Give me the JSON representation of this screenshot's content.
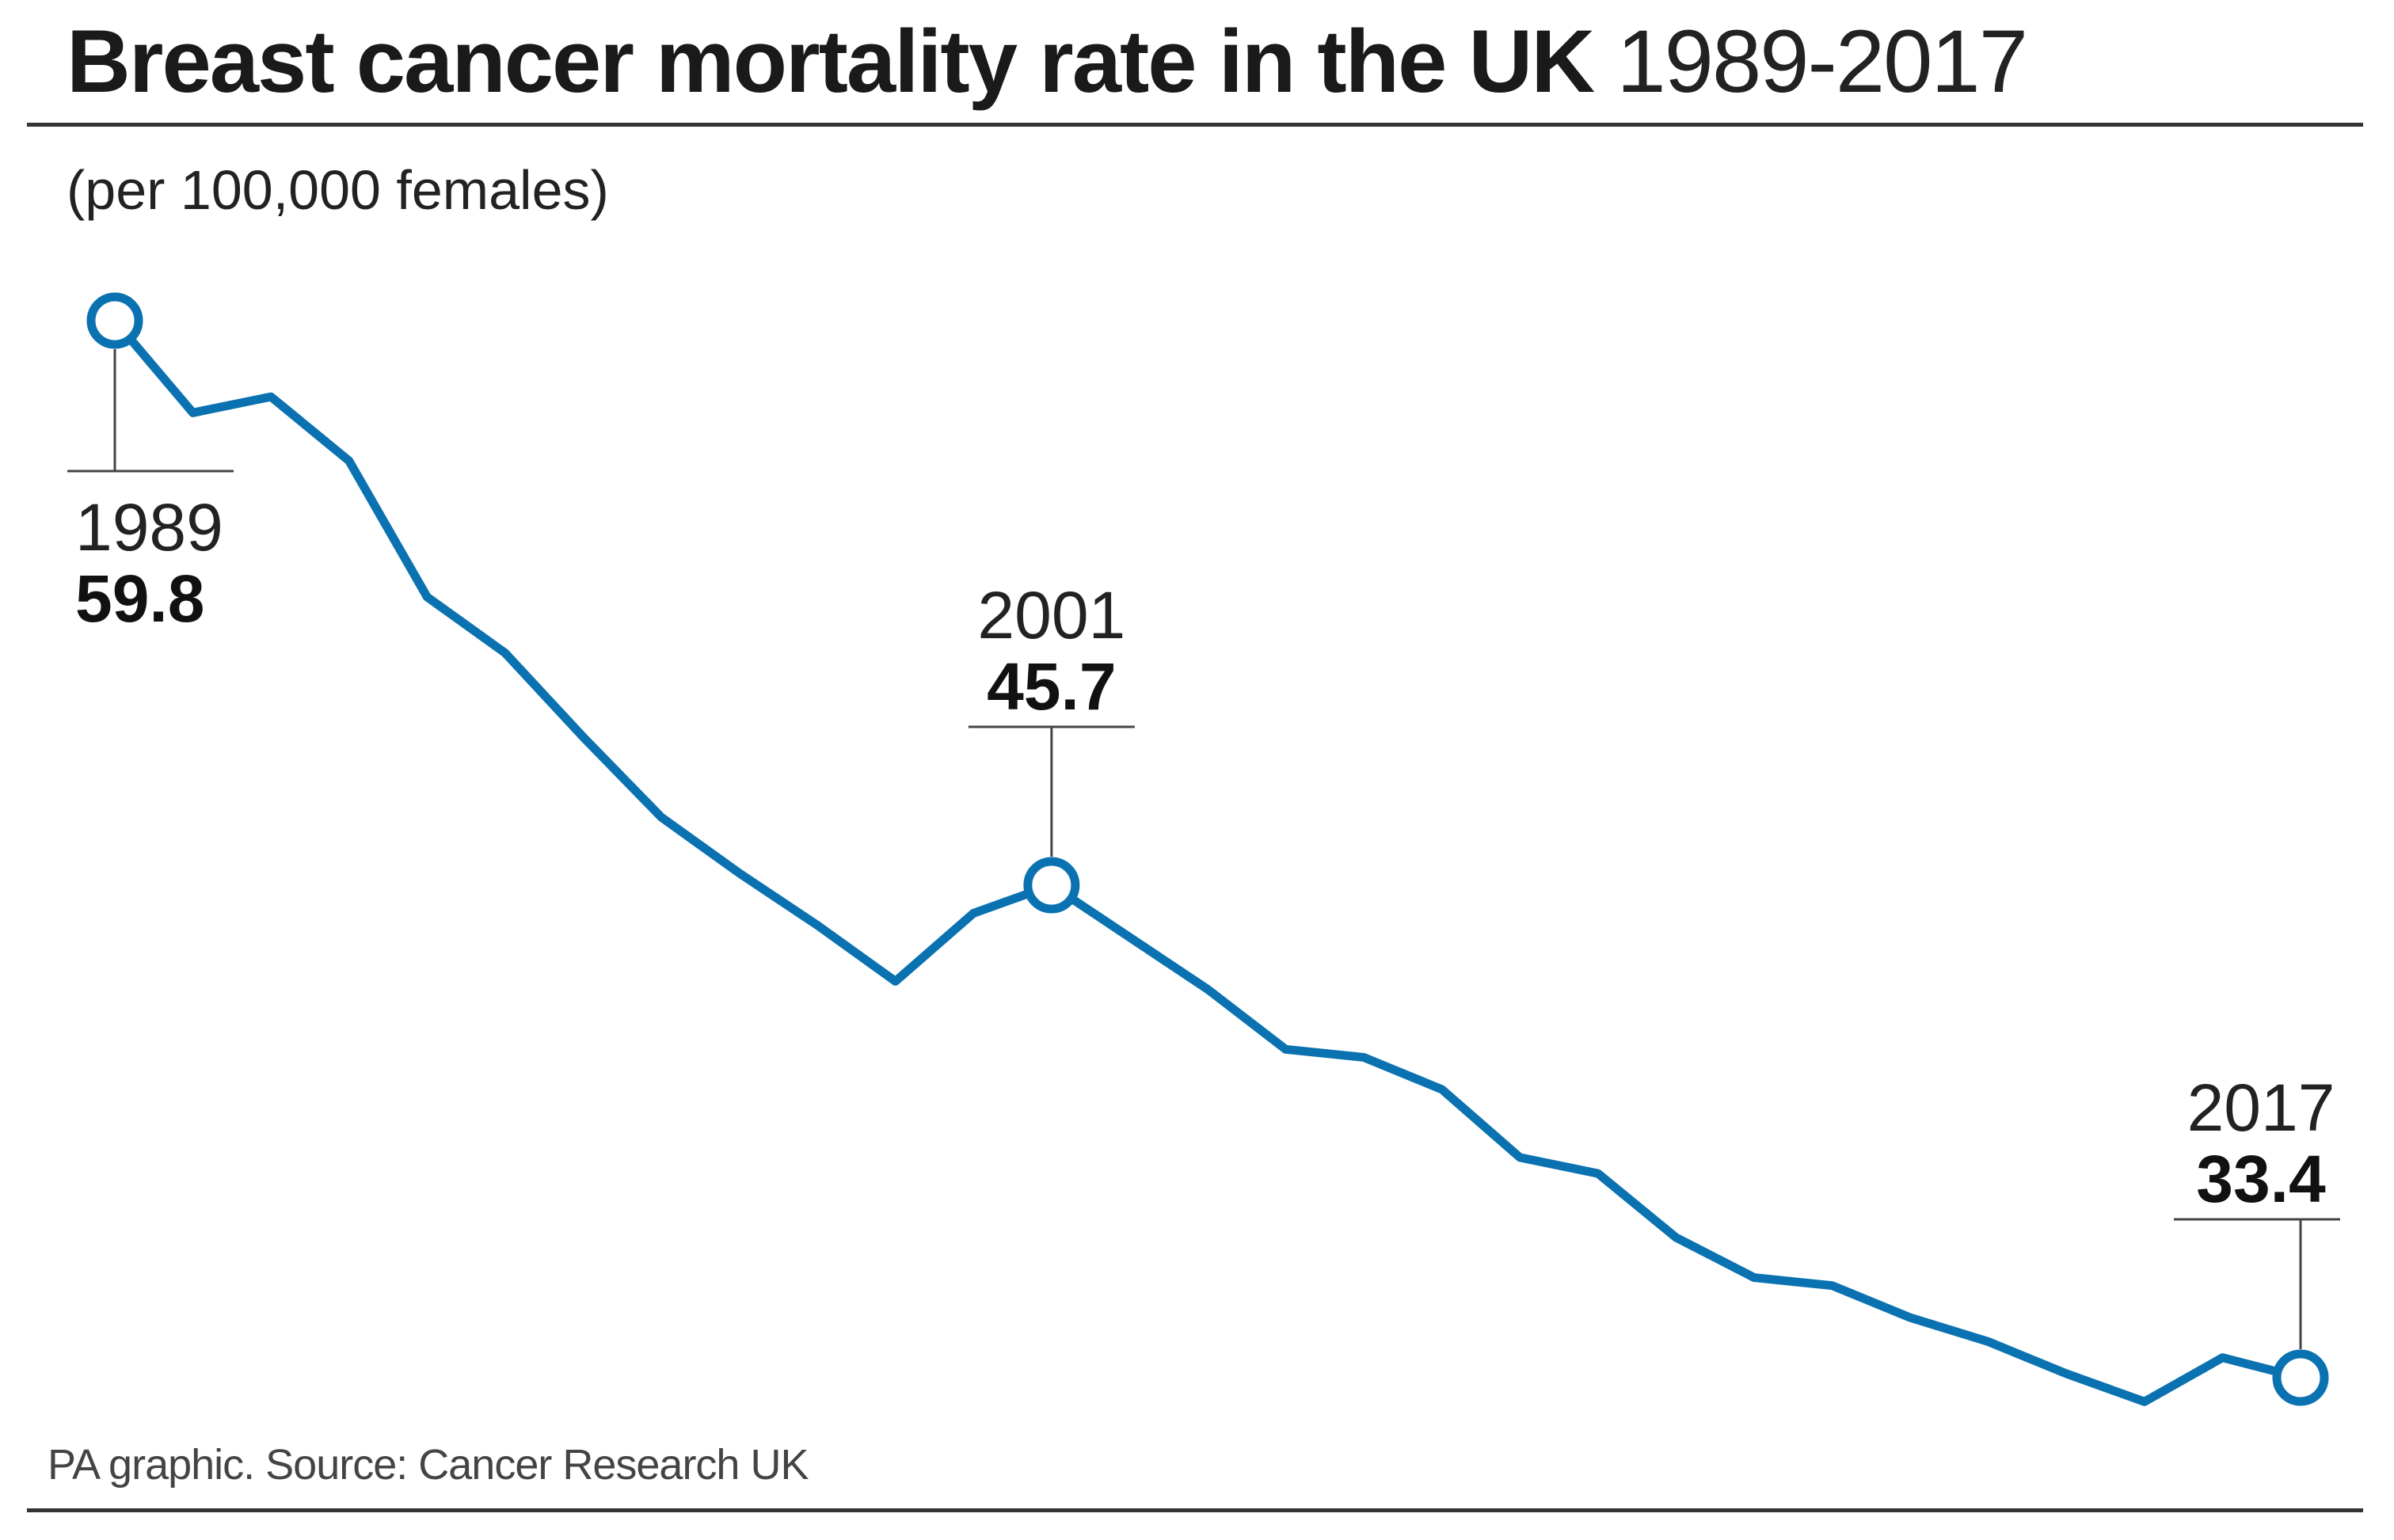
{
  "title": {
    "bold": "Breast cancer mortality rate in the UK",
    "light": "1989-2017"
  },
  "subtitle": "(per 100,000 females)",
  "source": "PA graphic. Source: Cancer Research UK",
  "colors": {
    "line": "#0a72b0",
    "text": "#1a1a1a",
    "rule": "#333333"
  },
  "chart_data": {
    "type": "line",
    "title": "Breast cancer mortality rate in the UK 1989-2017",
    "ylabel": "(per 100,000 females)",
    "xlabel": "",
    "xlim": [
      1989,
      2017
    ],
    "ylim": [
      30,
      62
    ],
    "grid": false,
    "series": [
      {
        "name": "Mortality rate",
        "x": [
          1989,
          1990,
          1991,
          1992,
          1993,
          1994,
          1995,
          1996,
          1997,
          1998,
          1999,
          2000,
          2001,
          2002,
          2003,
          2004,
          2005,
          2006,
          2007,
          2008,
          2009,
          2010,
          2011,
          2012,
          2013,
          2014,
          2015,
          2016,
          2017
        ],
        "values": [
          59.8,
          57.5,
          57.9,
          56.3,
          52.9,
          51.5,
          49.4,
          47.4,
          46.0,
          44.7,
          43.3,
          45.0,
          45.7,
          44.4,
          43.1,
          41.6,
          41.4,
          40.6,
          38.9,
          38.5,
          36.9,
          35.9,
          35.7,
          34.9,
          34.3,
          33.5,
          32.8,
          33.9,
          33.4
        ]
      }
    ],
    "annotations": [
      {
        "year": "1989",
        "value": "59.8"
      },
      {
        "year": "2001",
        "value": "45.7"
      },
      {
        "year": "2017",
        "value": "33.4"
      }
    ]
  }
}
